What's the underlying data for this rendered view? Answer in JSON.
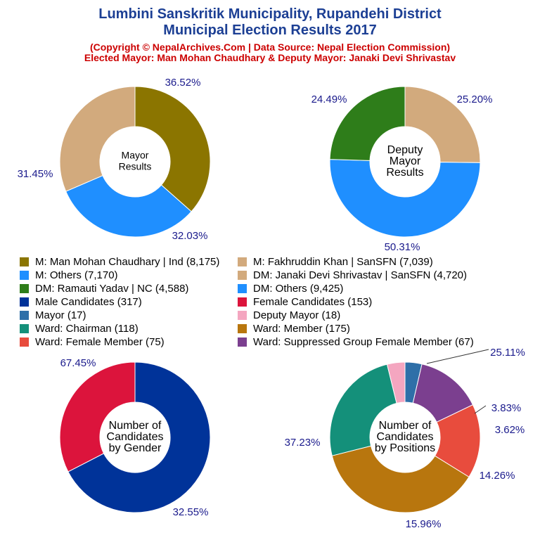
{
  "header": {
    "title_line1": "Lumbini Sanskritik Municipality, Rupandehi District",
    "title_line2": "Municipal Election Results 2017",
    "subtitle_line1": "(Copyright © NepalArchives.Com | Data Source: Nepal Election Commission)",
    "subtitle_line2": "Elected Mayor: Man Mohan Chaudhary & Deputy Mayor: Janaki Devi Shrivastav"
  },
  "legend": [
    {
      "label": "M: Man Mohan Chaudhary | Ind (8,175)",
      "color": "#8b7500"
    },
    {
      "label": "M: Fakhruddin Khan | SanSFN (7,039)",
      "color": "#d2aa7d"
    },
    {
      "label": "M: Others (7,170)",
      "color": "#1f8fff"
    },
    {
      "label": "DM: Janaki Devi Shrivastav | SanSFN (4,720)",
      "color": "#d2aa7d"
    },
    {
      "label": "DM: Ramauti Yadav | NC (4,588)",
      "color": "#2e7d1a"
    },
    {
      "label": "DM: Others (9,425)",
      "color": "#1f8fff"
    },
    {
      "label": "Male Candidates (317)",
      "color": "#003399"
    },
    {
      "label": "Female Candidates (153)",
      "color": "#dc143c"
    },
    {
      "label": "Mayor (17)",
      "color": "#2e6fa8"
    },
    {
      "label": "Deputy Mayor (18)",
      "color": "#f4a6c0"
    },
    {
      "label": "Ward: Chairman (118)",
      "color": "#14907a"
    },
    {
      "label": "Ward: Member (175)",
      "color": "#b8760e"
    },
    {
      "label": "Ward: Female Member (75)",
      "color": "#e84c3d"
    },
    {
      "label": "Ward: Suppressed Group Female Member (67)",
      "color": "#7b3f8f"
    }
  ],
  "chart_data": [
    {
      "type": "pie",
      "center_label": [
        "Mayor",
        "Results"
      ],
      "slices": [
        {
          "name": "M: Man Mohan Chaudhary | Ind",
          "value": 8175,
          "pct_label": "36.52%",
          "color": "#8b7500"
        },
        {
          "name": "M: Others",
          "value": 7170,
          "pct_label": "32.03%",
          "color": "#1f8fff"
        },
        {
          "name": "M: Fakhruddin Khan | SanSFN",
          "value": 7039,
          "pct_label": "31.45%",
          "color": "#d2aa7d"
        }
      ]
    },
    {
      "type": "pie",
      "center_label": [
        "Deputy",
        "Mayor",
        "Results"
      ],
      "slices": [
        {
          "name": "DM: Janaki Devi Shrivastav | SanSFN",
          "value": 4720,
          "pct_label": "25.20%",
          "color": "#d2aa7d"
        },
        {
          "name": "DM: Others",
          "value": 9425,
          "pct_label": "50.31%",
          "color": "#1f8fff"
        },
        {
          "name": "DM: Ramauti Yadav | NC",
          "value": 4588,
          "pct_label": "24.49%",
          "color": "#2e7d1a"
        }
      ]
    },
    {
      "type": "pie",
      "center_label": [
        "Number of",
        "Candidates",
        "by Gender"
      ],
      "slices": [
        {
          "name": "Male Candidates",
          "value": 317,
          "pct_label": "67.45%",
          "color": "#003399"
        },
        {
          "name": "Female Candidates",
          "value": 153,
          "pct_label": "32.55%",
          "color": "#dc143c"
        }
      ]
    },
    {
      "type": "pie",
      "center_label": [
        "Number of",
        "Candidates",
        "by Positions"
      ],
      "slices": [
        {
          "name": "Mayor",
          "value": 17,
          "pct_label": "3.62%",
          "color": "#2e6fa8"
        },
        {
          "name": "Ward: Suppressed Group Female Member",
          "value": 67,
          "pct_label": "14.26%",
          "color": "#7b3f8f"
        },
        {
          "name": "Ward: Female Member",
          "value": 75,
          "pct_label": "15.96%",
          "color": "#e84c3d"
        },
        {
          "name": "Ward: Member",
          "value": 175,
          "pct_label": "37.23%",
          "color": "#b8760e"
        },
        {
          "name": "Ward: Chairman",
          "value": 118,
          "pct_label": "25.11%",
          "color": "#14907a"
        },
        {
          "name": "Deputy Mayor",
          "value": 18,
          "pct_label": "3.83%",
          "color": "#f4a6c0"
        }
      ]
    }
  ]
}
